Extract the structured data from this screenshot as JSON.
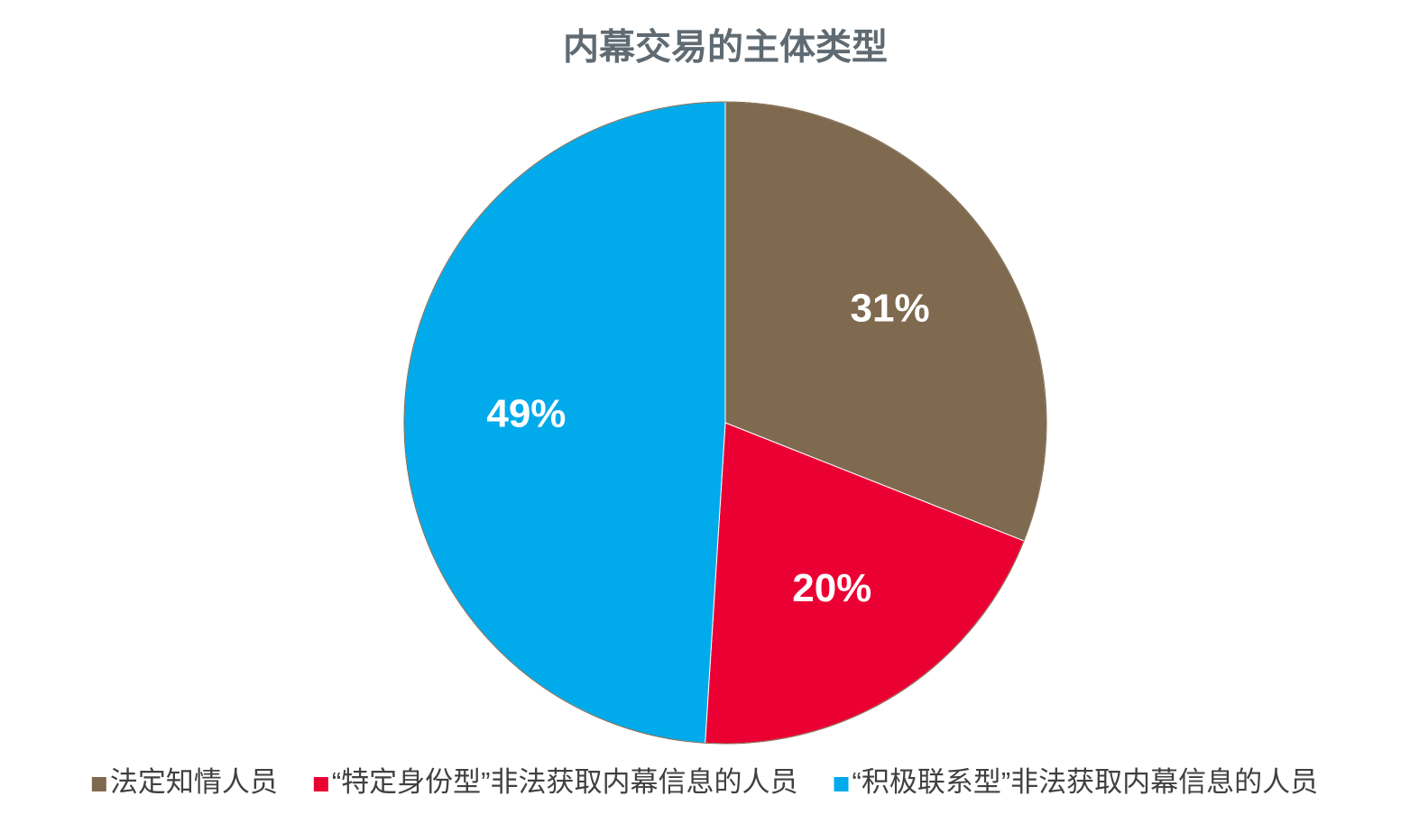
{
  "chart_data": {
    "type": "pie",
    "title": "内幕交易的主体类型",
    "categories": [
      "法定知情人员",
      "“特定身份型”非法获取内幕信息的人员",
      "“积极联系型”非法获取内幕信息的人员"
    ],
    "values": [
      31,
      20,
      49
    ],
    "value_labels": [
      "31%",
      "20%",
      "49%"
    ],
    "colors": [
      "#7f6a4f",
      "#eb0033",
      "#00aaeb"
    ],
    "legend": "bottom"
  }
}
